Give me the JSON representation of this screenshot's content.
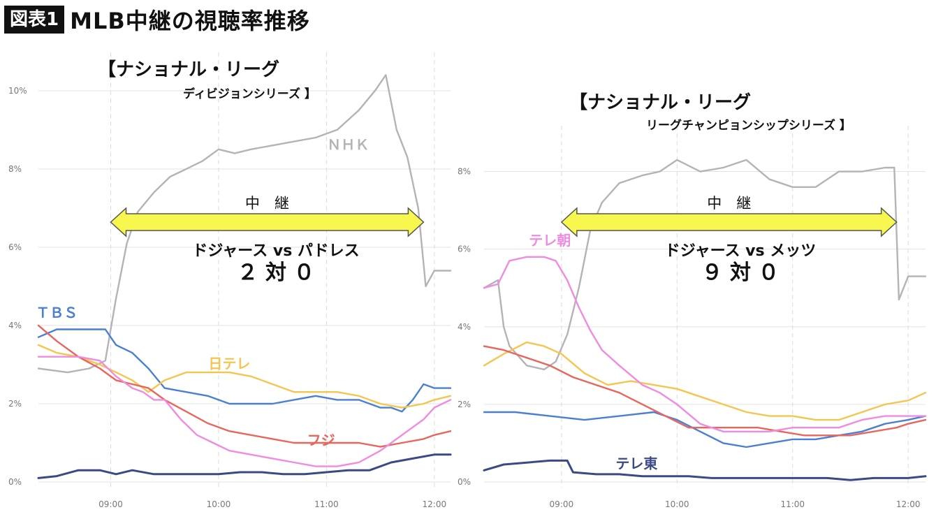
{
  "header": {
    "badge": "図表1",
    "title": "MLB中継の視聴率推移"
  },
  "colors": {
    "NHK": "#b3b3b8",
    "TBS": "#4a7fd4",
    "日テレ": "#f5c64f",
    "フジ": "#e8665d",
    "テレ朝": "#f08be0",
    "テレ東": "#3b4a84",
    "arrow_fill": "#f7f750",
    "arrow_stroke": "#555555"
  },
  "chart_data": [
    {
      "type": "line",
      "annotation": {
        "title": "【ナショナル・リーグ",
        "subtitle": "ディビジョンシリーズ 】",
        "span_label": "中　継",
        "game": "ドジャース vs パドレス",
        "score": "２ 対 ０"
      },
      "xlim": [
        8.33,
        12.15
      ],
      "ylim": [
        0,
        10.8
      ],
      "yticks": [
        0,
        2,
        4,
        6,
        8,
        10
      ],
      "ytick_labels": [
        "0%",
        "2%",
        "4%",
        "6%",
        "8%",
        "10%"
      ],
      "xticks": [
        9,
        10,
        11,
        12
      ],
      "xtick_labels": [
        "09:00",
        "10:00",
        "11:00",
        "12:00"
      ],
      "broadcast_span": [
        9.0,
        11.9
      ],
      "grid": true,
      "series": [
        {
          "name": "NHK",
          "label": "ＮＨＫ",
          "label_at": [
            11.2,
            8.5
          ],
          "x": [
            8.33,
            8.6,
            8.8,
            8.95,
            9.05,
            9.15,
            9.25,
            9.4,
            9.55,
            9.7,
            9.85,
            10.0,
            10.15,
            10.3,
            10.5,
            10.7,
            10.9,
            11.1,
            11.3,
            11.45,
            11.55,
            11.65,
            11.75,
            11.85,
            11.92,
            12.0,
            12.15
          ],
          "y": [
            2.9,
            2.8,
            2.9,
            3.1,
            4.7,
            6.1,
            6.9,
            7.4,
            7.8,
            8.0,
            8.2,
            8.5,
            8.4,
            8.5,
            8.6,
            8.7,
            8.8,
            9.0,
            9.5,
            10.0,
            10.4,
            9.0,
            8.3,
            7.0,
            5.0,
            5.4,
            5.4
          ]
        },
        {
          "name": "TBS",
          "label": "ＴＢＳ",
          "label_at": [
            8.5,
            4.2
          ],
          "x": [
            8.33,
            8.5,
            8.7,
            8.85,
            8.95,
            9.05,
            9.2,
            9.35,
            9.5,
            9.7,
            9.9,
            10.1,
            10.3,
            10.5,
            10.7,
            10.9,
            11.1,
            11.3,
            11.5,
            11.6,
            11.7,
            11.8,
            11.9,
            12.0,
            12.15
          ],
          "y": [
            3.7,
            3.9,
            3.9,
            3.9,
            3.9,
            3.5,
            3.3,
            2.9,
            2.4,
            2.3,
            2.2,
            2.0,
            2.0,
            2.0,
            2.1,
            2.2,
            2.1,
            2.1,
            1.9,
            1.9,
            1.8,
            2.1,
            2.5,
            2.4,
            2.4
          ]
        },
        {
          "name": "日テレ",
          "label": "日テレ",
          "label_at": [
            10.1,
            2.9
          ],
          "x": [
            8.33,
            8.5,
            8.7,
            8.9,
            9.05,
            9.2,
            9.35,
            9.5,
            9.7,
            9.9,
            10.1,
            10.3,
            10.5,
            10.7,
            10.9,
            11.1,
            11.3,
            11.5,
            11.7,
            11.9,
            12.0,
            12.15
          ],
          "y": [
            3.5,
            3.3,
            3.2,
            3.0,
            2.8,
            2.6,
            2.3,
            2.6,
            2.8,
            2.8,
            2.8,
            2.7,
            2.5,
            2.3,
            2.3,
            2.3,
            2.2,
            2.0,
            1.9,
            2.0,
            2.1,
            2.2
          ]
        },
        {
          "name": "フジ",
          "label": "フジ",
          "label_at": [
            10.95,
            0.95
          ],
          "x": [
            8.33,
            8.5,
            8.7,
            8.9,
            9.05,
            9.2,
            9.35,
            9.5,
            9.7,
            9.9,
            10.1,
            10.3,
            10.5,
            10.7,
            10.9,
            11.1,
            11.3,
            11.5,
            11.7,
            11.9,
            12.0,
            12.15
          ],
          "y": [
            4.0,
            3.6,
            3.2,
            2.9,
            2.6,
            2.5,
            2.4,
            2.1,
            1.8,
            1.5,
            1.3,
            1.2,
            1.1,
            1.0,
            1.0,
            1.0,
            1.0,
            0.9,
            1.0,
            1.1,
            1.2,
            1.3
          ]
        },
        {
          "name": "テレ朝",
          "label": "",
          "x": [
            8.33,
            8.5,
            8.7,
            8.9,
            9.05,
            9.2,
            9.3,
            9.4,
            9.5,
            9.65,
            9.8,
            9.95,
            10.1,
            10.3,
            10.5,
            10.7,
            10.9,
            11.1,
            11.3,
            11.5,
            11.7,
            11.9,
            12.0,
            12.15
          ],
          "y": [
            3.2,
            3.2,
            3.2,
            3.1,
            2.7,
            2.4,
            2.3,
            2.1,
            2.1,
            1.6,
            1.2,
            1.0,
            0.8,
            0.7,
            0.6,
            0.5,
            0.4,
            0.4,
            0.5,
            0.8,
            1.2,
            1.6,
            1.9,
            2.1
          ]
        },
        {
          "name": "テレ東",
          "label": "",
          "x": [
            8.33,
            8.5,
            8.7,
            8.9,
            9.05,
            9.2,
            9.4,
            9.6,
            9.8,
            10.0,
            10.2,
            10.4,
            10.6,
            10.8,
            11.0,
            11.2,
            11.4,
            11.6,
            11.8,
            12.0,
            12.15
          ],
          "y": [
            0.1,
            0.15,
            0.3,
            0.3,
            0.2,
            0.3,
            0.2,
            0.2,
            0.2,
            0.2,
            0.25,
            0.25,
            0.2,
            0.2,
            0.25,
            0.3,
            0.3,
            0.5,
            0.6,
            0.7,
            0.7
          ]
        }
      ]
    },
    {
      "type": "line",
      "annotation": {
        "title": "【ナショナル・リーグ",
        "subtitle": "リーグチャンピョンシップシリーズ 】",
        "span_label": "中　継",
        "game": "ドジャース vs メッツ",
        "score": "９ 対 ０"
      },
      "xlim": [
        8.33,
        12.15
      ],
      "ylim": [
        0,
        9.0
      ],
      "yticks": [
        0,
        2,
        4,
        6,
        8
      ],
      "ytick_labels": [
        "0%",
        "2%",
        "4%",
        "6%",
        "8%"
      ],
      "xticks": [
        9,
        10,
        11,
        12
      ],
      "xtick_labels": [
        "09:00",
        "10:00",
        "11:00",
        "12:00"
      ],
      "broadcast_span": [
        9.0,
        11.9
      ],
      "grid": true,
      "series": [
        {
          "name": "NHK",
          "label": "",
          "x": [
            8.33,
            8.45,
            8.5,
            8.55,
            8.7,
            8.85,
            8.95,
            9.05,
            9.15,
            9.25,
            9.35,
            9.5,
            9.7,
            9.85,
            10.0,
            10.2,
            10.4,
            10.6,
            10.8,
            11.0,
            11.2,
            11.4,
            11.6,
            11.8,
            11.88,
            11.92,
            12.0,
            12.15
          ],
          "y": [
            5.0,
            5.2,
            4.0,
            3.5,
            3.0,
            2.9,
            3.1,
            3.8,
            5.0,
            6.5,
            7.2,
            7.7,
            7.9,
            8.0,
            8.3,
            8.0,
            8.1,
            8.3,
            7.8,
            7.6,
            7.6,
            8.0,
            8.0,
            8.1,
            8.1,
            4.7,
            5.3,
            5.3
          ]
        },
        {
          "name": "TBS",
          "label": "",
          "x": [
            8.33,
            8.6,
            8.9,
            9.2,
            9.5,
            9.8,
            10.0,
            10.2,
            10.4,
            10.6,
            10.8,
            11.0,
            11.2,
            11.4,
            11.6,
            11.8,
            12.0,
            12.15
          ],
          "y": [
            1.8,
            1.8,
            1.7,
            1.6,
            1.7,
            1.8,
            1.6,
            1.3,
            1.0,
            0.9,
            1.0,
            1.1,
            1.1,
            1.2,
            1.3,
            1.5,
            1.6,
            1.7
          ]
        },
        {
          "name": "日テレ",
          "label": "",
          "x": [
            8.33,
            8.5,
            8.7,
            8.85,
            9.0,
            9.2,
            9.4,
            9.6,
            9.8,
            10.0,
            10.2,
            10.4,
            10.6,
            10.8,
            11.0,
            11.2,
            11.4,
            11.6,
            11.8,
            12.0,
            12.15
          ],
          "y": [
            3.0,
            3.3,
            3.6,
            3.5,
            3.3,
            2.8,
            2.5,
            2.6,
            2.5,
            2.4,
            2.2,
            2.0,
            1.8,
            1.7,
            1.7,
            1.6,
            1.6,
            1.8,
            2.0,
            2.1,
            2.3
          ]
        },
        {
          "name": "フジ",
          "label": "",
          "x": [
            8.33,
            8.5,
            8.7,
            8.9,
            9.1,
            9.3,
            9.5,
            9.7,
            9.9,
            10.1,
            10.3,
            10.5,
            10.7,
            10.9,
            11.1,
            11.3,
            11.5,
            11.7,
            11.9,
            12.0,
            12.15
          ],
          "y": [
            3.5,
            3.4,
            3.2,
            3.0,
            2.7,
            2.5,
            2.3,
            2.0,
            1.7,
            1.4,
            1.4,
            1.4,
            1.4,
            1.3,
            1.2,
            1.2,
            1.2,
            1.3,
            1.4,
            1.5,
            1.6
          ]
        },
        {
          "name": "テレ朝",
          "label": "テレ朝",
          "label_at": [
            8.9,
            6.1
          ],
          "x": [
            8.33,
            8.45,
            8.55,
            8.7,
            8.85,
            8.95,
            9.05,
            9.15,
            9.25,
            9.35,
            9.5,
            9.7,
            9.85,
            10.0,
            10.2,
            10.4,
            10.6,
            10.8,
            11.0,
            11.2,
            11.4,
            11.6,
            11.8,
            12.0,
            12.15
          ],
          "y": [
            5.0,
            5.1,
            5.7,
            5.8,
            5.8,
            5.7,
            5.2,
            4.5,
            3.9,
            3.4,
            3.0,
            2.5,
            2.3,
            2.0,
            1.5,
            1.3,
            1.3,
            1.3,
            1.4,
            1.4,
            1.4,
            1.6,
            1.7,
            1.7,
            1.7
          ]
        },
        {
          "name": "テレ東",
          "label": "テレ東",
          "label_at": [
            9.65,
            0.35
          ],
          "x": [
            8.33,
            8.5,
            8.7,
            8.9,
            9.05,
            9.1,
            9.3,
            9.5,
            9.7,
            9.9,
            10.1,
            10.3,
            10.5,
            10.7,
            10.9,
            11.1,
            11.3,
            11.5,
            11.7,
            11.9,
            12.0,
            12.15
          ],
          "y": [
            0.3,
            0.45,
            0.5,
            0.55,
            0.55,
            0.25,
            0.2,
            0.2,
            0.15,
            0.15,
            0.15,
            0.1,
            0.1,
            0.1,
            0.1,
            0.1,
            0.1,
            0.05,
            0.1,
            0.1,
            0.1,
            0.15
          ]
        }
      ]
    }
  ]
}
